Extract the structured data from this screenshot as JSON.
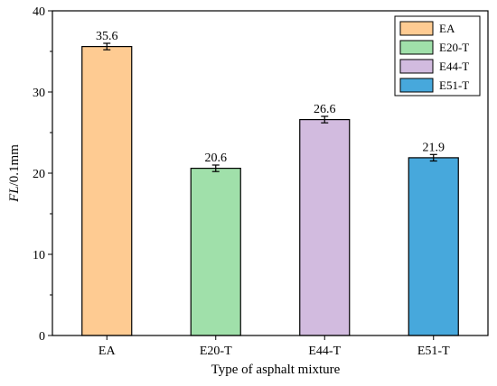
{
  "chart_data": {
    "type": "bar",
    "categories": [
      "EA",
      "E20-T",
      "E44-T",
      "E51-T"
    ],
    "values": [
      35.6,
      20.6,
      26.6,
      21.9
    ],
    "errors": [
      0.4,
      0.4,
      0.4,
      0.4
    ],
    "data_labels": [
      "35.6",
      "20.6",
      "26.6",
      "21.9"
    ],
    "colors": [
      "#FECB92",
      "#A0E0AA",
      "#D2BBDF",
      "#47A8DC"
    ],
    "xlabel": "Type of asphalt mixture",
    "ylabel_italic": "FL",
    "ylabel_rest": "/0.1mm",
    "ylim": [
      0,
      40
    ],
    "yticks": [
      0,
      10,
      20,
      30,
      40
    ],
    "grid": false,
    "legend": {
      "placement": "top-right",
      "entries": [
        "EA",
        "E20-T",
        "E44-T",
        "E51-T"
      ]
    }
  }
}
